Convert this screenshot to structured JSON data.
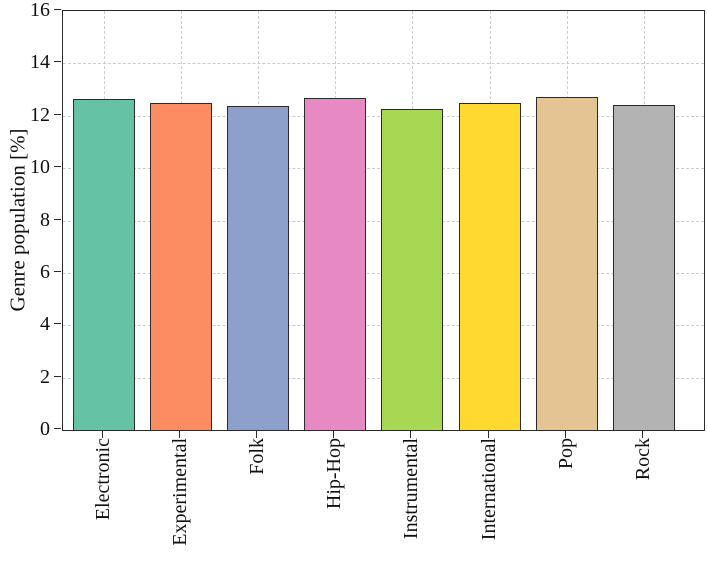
{
  "chart_data": {
    "type": "bar",
    "title": "",
    "xlabel": "",
    "ylabel": "Genre population [%]",
    "categories": [
      "Electronic",
      "Experimental",
      "Folk",
      "Hip-Hop",
      "Instrumental",
      "International",
      "Pop",
      "Rock"
    ],
    "values": [
      12.64,
      12.47,
      12.38,
      12.67,
      12.24,
      12.5,
      12.7,
      12.42
    ],
    "ylim": [
      0,
      16
    ],
    "yticks": [
      0,
      2,
      4,
      6,
      8,
      10,
      12,
      14,
      16
    ],
    "bar_colors": [
      "#66c2a5",
      "#fc8d62",
      "#8da0cb",
      "#e78ac3",
      "#a6d854",
      "#ffd92f",
      "#e5c494",
      "#b3b3b3"
    ],
    "bar_edge_color": "#2b2b2b",
    "grid": {
      "visible": true,
      "style": "dashed",
      "color": "#cccccc"
    },
    "legend": "none",
    "background": "#ffffff",
    "spines": "box"
  }
}
